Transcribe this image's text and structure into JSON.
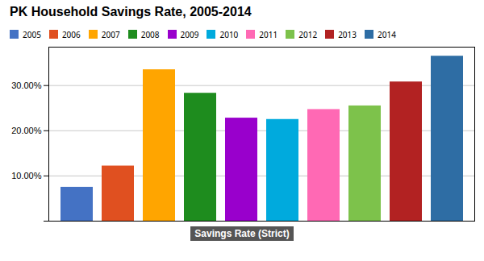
{
  "chart_data": {
    "type": "bar",
    "title": "PK Household Savings Rate, 2005-2014",
    "xlabel": "Savings Rate (Strict)",
    "categories": [
      "2005",
      "2006",
      "2007",
      "2008",
      "2009",
      "2010",
      "2011",
      "2012",
      "2013",
      "2014"
    ],
    "values": [
      0.075,
      0.122,
      0.335,
      0.283,
      0.228,
      0.225,
      0.247,
      0.255,
      0.308,
      0.365
    ],
    "colors": [
      "#4472C4",
      "#E05020",
      "#FFA500",
      "#1E8C1E",
      "#9900CC",
      "#00AADD",
      "#FF69B4",
      "#7DC24B",
      "#B22222",
      "#2E6DA4"
    ],
    "ylim": [
      0,
      0.385
    ],
    "yticks": [
      {
        "value": 0.0,
        "label": ""
      },
      {
        "value": 0.1,
        "label": "10.00%"
      },
      {
        "value": 0.2,
        "label": "20.00%"
      },
      {
        "value": 0.3,
        "label": "30.00%"
      }
    ],
    "grid": true,
    "legend": "top-left",
    "tick_labels": "y"
  }
}
